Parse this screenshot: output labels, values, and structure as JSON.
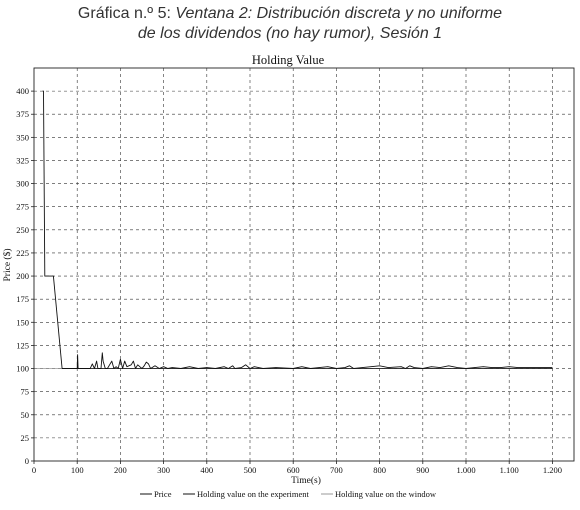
{
  "figure_caption": {
    "prefix": "Gráfica n.º 5:",
    "line1": "Ventana 2: Distribución discreta y no uniforme",
    "line2": "de los dividendos (no hay rumor), Sesión 1"
  },
  "chart_data": {
    "type": "line",
    "title": "Holding Value",
    "xlabel": "Time(s)",
    "ylabel": "Price ($)",
    "xlim": [
      0,
      1250
    ],
    "ylim": [
      0,
      425
    ],
    "x_ticks": [
      0,
      100,
      200,
      300,
      400,
      500,
      600,
      700,
      800,
      900,
      1000,
      1100,
      1200
    ],
    "x_tick_labels": [
      "0",
      "100",
      "200",
      "300",
      "400",
      "500",
      "600",
      "700",
      "800",
      "900",
      "1.000",
      "1.100",
      "1.200"
    ],
    "y_ticks": [
      0,
      25,
      50,
      75,
      100,
      125,
      150,
      175,
      200,
      225,
      250,
      275,
      300,
      325,
      350,
      375,
      400
    ],
    "grid": true,
    "legend_position": "bottom",
    "series": [
      {
        "name": "Price",
        "color": "#111111",
        "style": "solid",
        "points": [
          [
            20,
            400
          ],
          [
            22,
            400
          ],
          [
            25,
            200
          ],
          [
            45,
            200
          ],
          [
            65,
            100
          ],
          [
            100,
            100
          ],
          [
            101,
            115
          ],
          [
            102,
            100
          ],
          [
            130,
            100
          ],
          [
            135,
            105
          ],
          [
            140,
            100
          ],
          [
            145,
            108
          ],
          [
            148,
            100
          ],
          [
            155,
            100
          ],
          [
            158,
            117
          ],
          [
            160,
            108
          ],
          [
            165,
            100
          ],
          [
            170,
            100
          ],
          [
            175,
            104
          ],
          [
            180,
            108
          ],
          [
            185,
            100
          ],
          [
            190,
            102
          ],
          [
            195,
            100
          ],
          [
            200,
            110
          ],
          [
            205,
            100
          ],
          [
            210,
            108
          ],
          [
            215,
            102
          ],
          [
            225,
            104
          ],
          [
            230,
            108
          ],
          [
            235,
            100
          ],
          [
            240,
            104
          ],
          [
            245,
            102
          ],
          [
            250,
            100
          ],
          [
            255,
            103
          ],
          [
            260,
            107
          ],
          [
            265,
            105
          ],
          [
            270,
            100
          ],
          [
            280,
            103
          ],
          [
            290,
            100
          ],
          [
            300,
            102
          ],
          [
            310,
            100
          ],
          [
            320,
            101
          ],
          [
            340,
            100
          ],
          [
            360,
            102
          ],
          [
            380,
            100
          ],
          [
            400,
            101
          ],
          [
            420,
            100
          ],
          [
            440,
            102
          ],
          [
            450,
            100
          ],
          [
            460,
            103
          ],
          [
            465,
            100
          ],
          [
            480,
            101
          ],
          [
            490,
            104
          ],
          [
            500,
            100
          ],
          [
            510,
            102
          ],
          [
            520,
            101
          ],
          [
            530,
            100
          ],
          [
            560,
            101
          ],
          [
            600,
            100
          ],
          [
            620,
            102
          ],
          [
            640,
            100
          ],
          [
            660,
            101
          ],
          [
            680,
            102
          ],
          [
            700,
            100
          ],
          [
            720,
            101
          ],
          [
            730,
            103
          ],
          [
            740,
            100
          ],
          [
            760,
            101
          ],
          [
            800,
            103
          ],
          [
            820,
            101
          ],
          [
            850,
            102
          ],
          [
            860,
            100
          ],
          [
            870,
            103
          ],
          [
            880,
            101
          ],
          [
            900,
            100
          ],
          [
            920,
            102
          ],
          [
            940,
            101
          ],
          [
            960,
            103
          ],
          [
            980,
            101
          ],
          [
            1000,
            100
          ],
          [
            1020,
            101
          ],
          [
            1040,
            102
          ],
          [
            1060,
            101
          ],
          [
            1080,
            101
          ],
          [
            1100,
            102
          ],
          [
            1120,
            101
          ],
          [
            1150,
            101
          ],
          [
            1180,
            101
          ],
          [
            1200,
            101
          ]
        ]
      },
      {
        "name": "Holding value on the experiment",
        "color": "#111111",
        "style": "solid",
        "points": [
          [
            65,
            100
          ],
          [
            1200,
            100
          ]
        ]
      },
      {
        "name": "Holding value on the window",
        "color": "#999999",
        "style": "solid",
        "points": [
          [
            0,
            100
          ],
          [
            1200,
            100
          ]
        ]
      }
    ]
  }
}
